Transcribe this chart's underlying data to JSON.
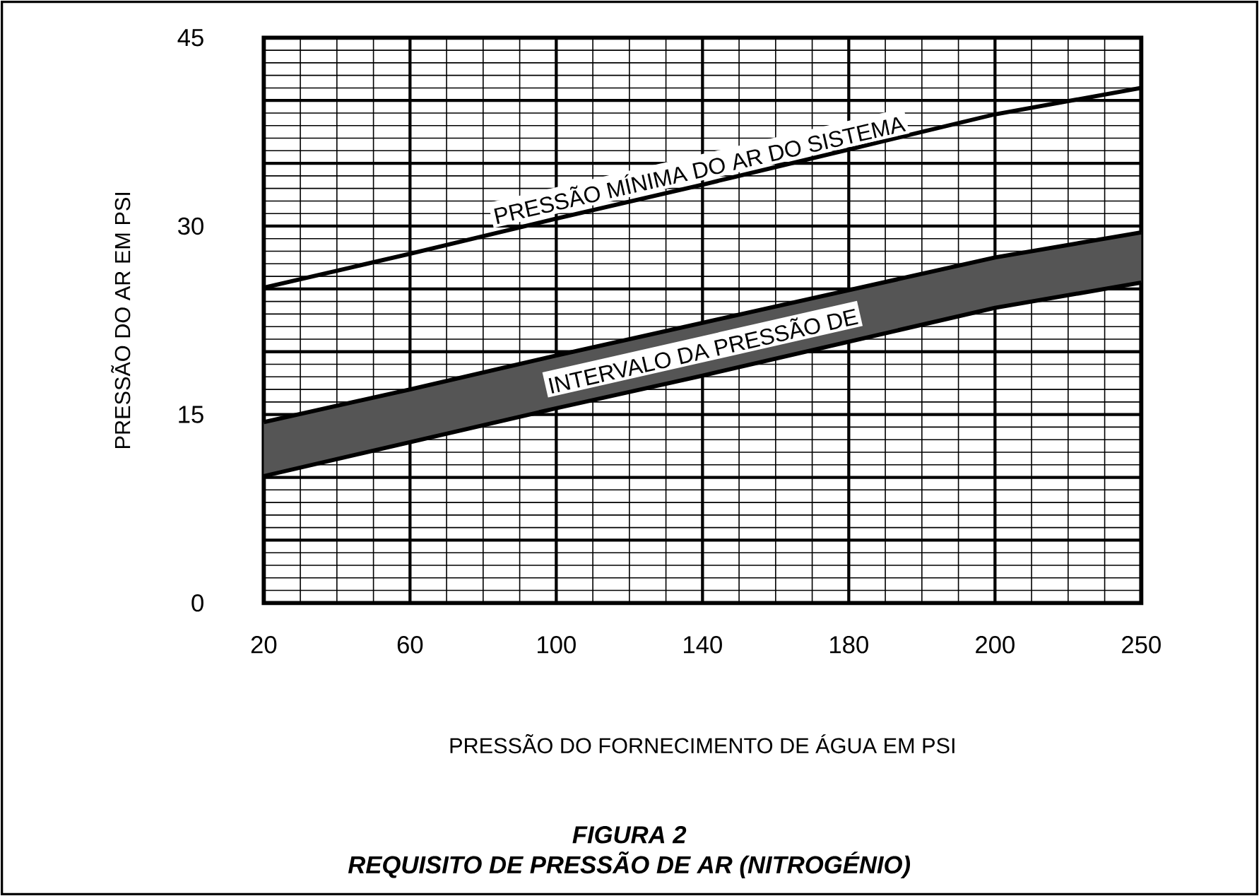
{
  "chart_data": {
    "type": "line",
    "title": "FIGURA 2",
    "subtitle": "REQUISITO DE PRESSÃO DE AR (NITROGÉNIO)",
    "xlabel": "PRESSÃO DO FORNECIMENTO DE ÁGUA EM PSI",
    "ylabel": "PRESSÃO DO AR EM PSI",
    "categories": [
      "20",
      "60",
      "100",
      "140",
      "180",
      "200",
      "250"
    ],
    "series": [
      {
        "color": "#000000",
        "values": [
          25.1,
          27.8,
          30.6,
          33.3,
          36.1,
          38.9,
          41.0
        ]
      },
      {
        "color": "#000000",
        "values": [
          14.4,
          17.0,
          19.7,
          22.3,
          24.9,
          27.5,
          29.5
        ]
      },
      {
        "color": "#000000",
        "values": [
          10.1,
          12.8,
          15.5,
          18.1,
          20.8,
          23.5,
          25.5
        ]
      },
      {
        "color": "#555555",
        "values": [
          null,
          null,
          null,
          null,
          null,
          null,
          null
        ],
        "lower": [
          10.1,
          12.8,
          15.5,
          18.1,
          20.8,
          23.5,
          25.5
        ],
        "upper": [
          14.4,
          17.0,
          19.7,
          22.3,
          24.9,
          27.5,
          29.5
        ]
      }
    ],
    "annotations": [
      {
        "text": "PRESSÃO MÍNIMA DO AR DO SISTEMA",
        "x": "140",
        "y": 33.3
      },
      "INTERVALO DA PRESSÃO DE"
    ],
    "ylim": [
      0,
      45
    ],
    "yticks": [
      0,
      15,
      30,
      45
    ],
    "grid": true,
    "marker": "none",
    "line_style": "solid"
  }
}
